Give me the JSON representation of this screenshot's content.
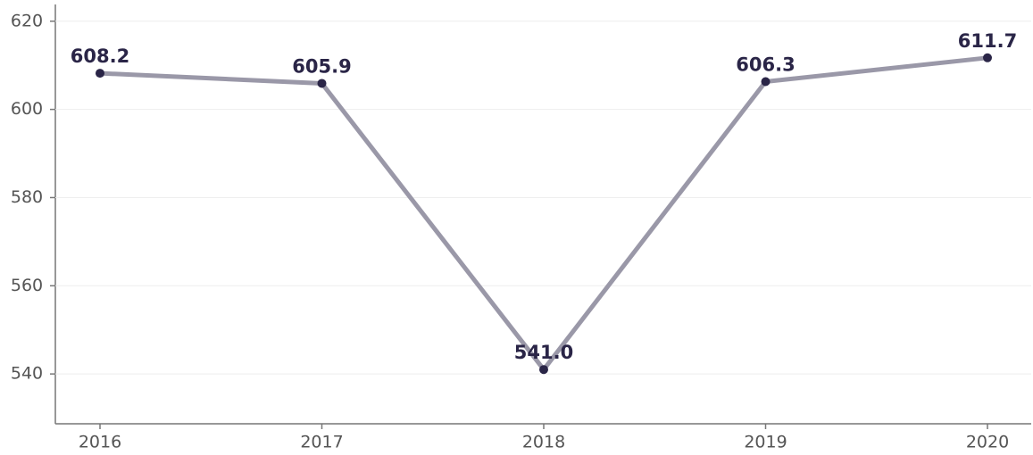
{
  "chart_data": {
    "type": "line",
    "categories": [
      "2016",
      "2017",
      "2018",
      "2019",
      "2020"
    ],
    "values": [
      608.2,
      605.9,
      541.0,
      606.3,
      611.7
    ],
    "value_labels": [
      "608.2",
      "605.9",
      "541.0",
      "606.3",
      "611.7"
    ],
    "color": "#9a98a8",
    "marker_color": "#2a2547",
    "ylim": [
      528.7,
      623.8
    ],
    "yticks": [
      540,
      560,
      580,
      600,
      620
    ],
    "grid": true
  }
}
